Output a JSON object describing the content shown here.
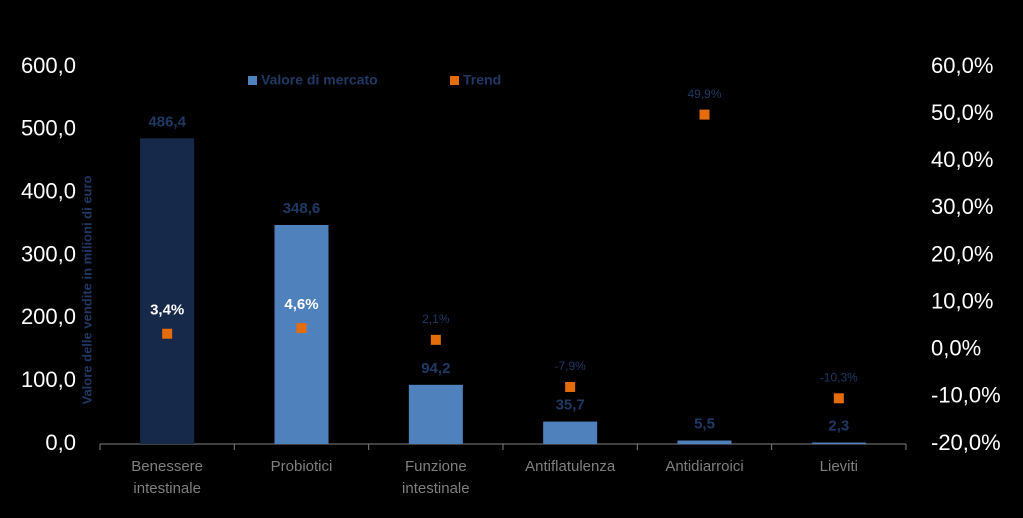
{
  "chart_data": {
    "type": "bar",
    "y_label": "Valore delle vendite in milioni di euro",
    "categories": [
      "Benessere intestinale",
      "Probiotici",
      "Funzione intestinale",
      "Antiflatulenza",
      "Antidiarroici",
      "Lieviti"
    ],
    "series": [
      {
        "name": "Valore di mercato",
        "color": "#4f81bd",
        "colors": [
          "#17294a",
          "#4f81bd",
          "#4f81bd",
          "#4f81bd",
          "#4f81bd",
          "#4f81bd"
        ],
        "values": [
          486.4,
          348.6,
          94.2,
          35.7,
          5.5,
          2.3
        ],
        "value_labels": [
          "486,4",
          "348,6",
          "94,2",
          "35,7",
          "5,5",
          "2,3"
        ]
      },
      {
        "name": "Trend",
        "type": "scatter",
        "axis": "y2",
        "color": "#e46c0a",
        "label_colors": [
          "#ffffff",
          "#ffffff",
          "#1f3864",
          "#1f3864",
          "#1f3864",
          "#1f3864"
        ],
        "values": [
          3.4,
          4.6,
          2.1,
          -7.9,
          49.9,
          -10.3
        ],
        "value_labels": [
          "3,4%",
          "4,6%",
          "2,1%",
          "-7,9%",
          "49,9%",
          "-10,3%"
        ]
      }
    ],
    "ylim": [
      0,
      600
    ],
    "yticks": [
      {
        "value": 0,
        "label": "0,0"
      },
      {
        "value": 100,
        "label": "100,0"
      },
      {
        "value": 200,
        "label": "200,0"
      },
      {
        "value": 300,
        "label": "300,0"
      },
      {
        "value": 400,
        "label": "400,0"
      },
      {
        "value": 500,
        "label": "500,0"
      },
      {
        "value": 600,
        "label": "600,0"
      }
    ],
    "y2lim": [
      -20,
      60
    ],
    "y2ticks": [
      {
        "value": -20,
        "label": "-20,0%"
      },
      {
        "value": -10,
        "label": "-10,0%"
      },
      {
        "value": 0,
        "label": "0,0%"
      },
      {
        "value": 10,
        "label": "10,0%"
      },
      {
        "value": 20,
        "label": "20,0%"
      },
      {
        "value": 30,
        "label": "30,0%"
      },
      {
        "value": 40,
        "label": "40,0%"
      },
      {
        "value": 50,
        "label": "50,0%"
      },
      {
        "value": 60,
        "label": "60,0%"
      }
    ]
  }
}
